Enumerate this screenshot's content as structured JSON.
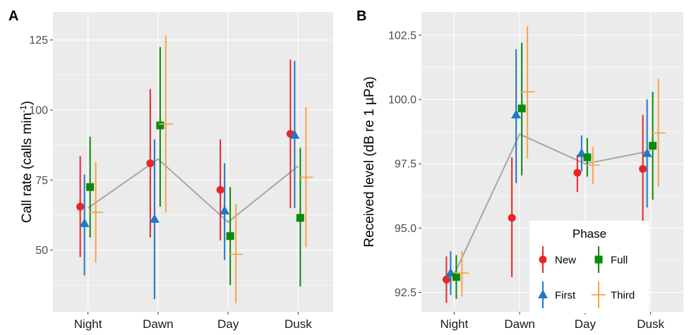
{
  "legend": {
    "title": "Phase",
    "placement": "bottom-right of panel B",
    "entries": [
      {
        "key": "new",
        "label": "New"
      },
      {
        "key": "full",
        "label": "Full"
      },
      {
        "key": "first",
        "label": "First"
      },
      {
        "key": "third",
        "label": "Third"
      }
    ]
  },
  "phases": [
    {
      "key": "new",
      "label": "New",
      "color": "#e8262a",
      "shape": "circle"
    },
    {
      "key": "first",
      "label": "First",
      "color": "#1f78c8",
      "shape": "triangle"
    },
    {
      "key": "full",
      "label": "Full",
      "color": "#0a8a0a",
      "shape": "square"
    },
    {
      "key": "third",
      "label": "Third",
      "color": "#f5a54a",
      "shape": "plus"
    }
  ],
  "mean_line_color": "#a6a6a6",
  "chart_data": [
    {
      "panel": "A",
      "type": "scatter",
      "ylabel": "Call rate (calls min",
      "ylabel_sup": "-1",
      "ylabel_suffix": ")",
      "ylim": [
        28,
        135
      ],
      "yticks": [
        "50",
        "75",
        "100",
        "125"
      ],
      "ytick_values": [
        50,
        75,
        100,
        125
      ],
      "categories": [
        "Night",
        "Dawn",
        "Day",
        "Dusk"
      ],
      "grid": true,
      "series": [
        {
          "name": "New",
          "values": [
            65.5,
            81,
            71.5,
            91.5
          ],
          "lower": [
            47.5,
            54.5,
            53.5,
            65
          ],
          "upper": [
            83.5,
            107.5,
            89.5,
            118
          ]
        },
        {
          "name": "First",
          "values": [
            59.5,
            61,
            64,
            91
          ],
          "lower": [
            41,
            32.5,
            46.5,
            65
          ],
          "upper": [
            77,
            89.5,
            81,
            117.5
          ]
        },
        {
          "name": "Full",
          "values": [
            72.5,
            94.5,
            55,
            61.5
          ],
          "lower": [
            54.5,
            65.5,
            37.5,
            37
          ],
          "upper": [
            90.5,
            122.5,
            72.5,
            86.5
          ]
        },
        {
          "name": "Third",
          "values": [
            63.5,
            95,
            48.5,
            76
          ],
          "lower": [
            45.5,
            63.5,
            31,
            51
          ],
          "upper": [
            81.5,
            126.5,
            66.5,
            101
          ]
        }
      ],
      "mean_line": [
        65,
        82.5,
        60,
        80
      ]
    },
    {
      "panel": "B",
      "type": "scatter",
      "ylabel": "Received level (dB re 1 µPa)",
      "ylim": [
        91.75,
        103.4
      ],
      "yticks": [
        "92.5",
        "95.0",
        "97.5",
        "100.0",
        "102.5"
      ],
      "ytick_values": [
        92.5,
        95.0,
        97.5,
        100.0,
        102.5
      ],
      "categories": [
        "Night",
        "Dawn",
        "Day",
        "Dusk"
      ],
      "grid": true,
      "series": [
        {
          "name": "New",
          "values": [
            93.0,
            95.4,
            97.15,
            97.3
          ],
          "lower": [
            92.1,
            93.1,
            96.4,
            95.2
          ],
          "upper": [
            93.9,
            97.75,
            97.85,
            99.4
          ]
        },
        {
          "name": "First",
          "values": [
            93.25,
            99.4,
            97.9,
            97.9
          ],
          "lower": [
            92.4,
            96.75,
            97.2,
            95.8
          ],
          "upper": [
            94.1,
            101.95,
            98.6,
            100.0
          ]
        },
        {
          "name": "Full",
          "values": [
            93.1,
            99.65,
            97.75,
            98.2
          ],
          "lower": [
            92.25,
            97.05,
            97.0,
            96.1
          ],
          "upper": [
            93.95,
            102.2,
            98.5,
            100.3
          ]
        },
        {
          "name": "Third",
          "values": [
            93.25,
            100.3,
            97.45,
            98.7
          ],
          "lower": [
            92.35,
            97.7,
            96.7,
            96.6
          ],
          "upper": [
            94.1,
            102.85,
            98.15,
            100.8
          ]
        }
      ],
      "mean_line": [
        93.2,
        98.65,
        97.5,
        98.0
      ]
    }
  ]
}
